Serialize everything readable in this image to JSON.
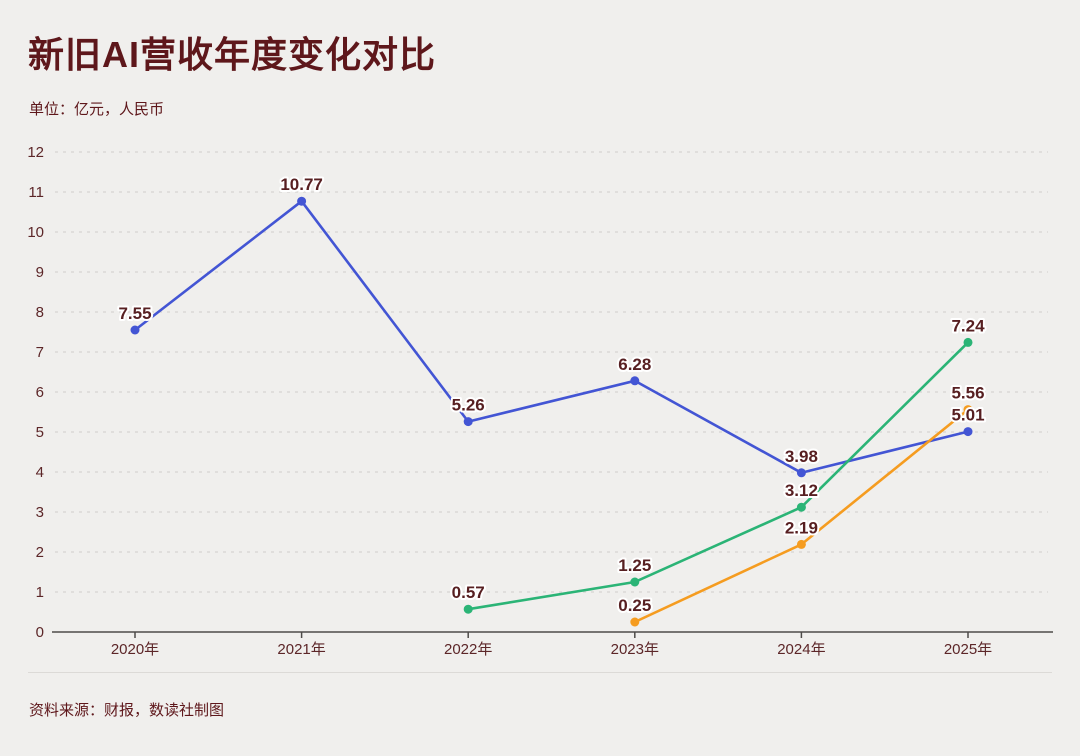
{
  "page": {
    "title": "新旧AI营收年度变化对比",
    "subtitle": "单位：亿元，人民币",
    "source_note": "资料来源：财报，数读社制图"
  },
  "colors": {
    "background": "#f0efed",
    "title_text": "#5e171b",
    "axis_line": "#4d4b49",
    "axis_tick_label": "#5c2628",
    "gridline": "#d6d4d1",
    "data_label": "#571f21",
    "data_label_halo": "#ffffff",
    "divider": "#dcdad7",
    "series_blue": "#4355d4",
    "series_green": "#2bb476",
    "series_orange": "#f59c20"
  },
  "chart_data": {
    "type": "line",
    "title": "新旧AI营收年度变化对比",
    "subtitle": "单位：亿元，人民币",
    "xlabel": "",
    "ylabel": "",
    "categories": [
      "2020年",
      "2021年",
      "2022年",
      "2023年",
      "2024年",
      "2025年"
    ],
    "series": [
      {
        "name": "blue-series",
        "color": "#4355d4",
        "values": [
          7.55,
          10.77,
          5.26,
          6.28,
          3.98,
          5.01
        ],
        "labels": [
          "7.55",
          "10.77",
          "5.26",
          "6.28",
          "3.98",
          "5.01"
        ]
      },
      {
        "name": "green-series",
        "color": "#2bb476",
        "values": [
          null,
          null,
          0.57,
          1.25,
          3.12,
          7.24
        ],
        "labels": [
          null,
          null,
          "0.57",
          "1.25",
          "3.12",
          "7.24"
        ]
      },
      {
        "name": "orange-series",
        "color": "#f59c20",
        "values": [
          null,
          null,
          null,
          0.25,
          2.19,
          5.56
        ],
        "labels": [
          null,
          null,
          null,
          "0.25",
          "2.19",
          "5.56"
        ]
      }
    ],
    "ylim": [
      0,
      12
    ],
    "yticks": [
      0,
      1,
      2,
      3,
      4,
      5,
      6,
      7,
      8,
      9,
      10,
      11,
      12
    ],
    "grid": true,
    "gridline_style": "dashed",
    "legend": "none"
  }
}
